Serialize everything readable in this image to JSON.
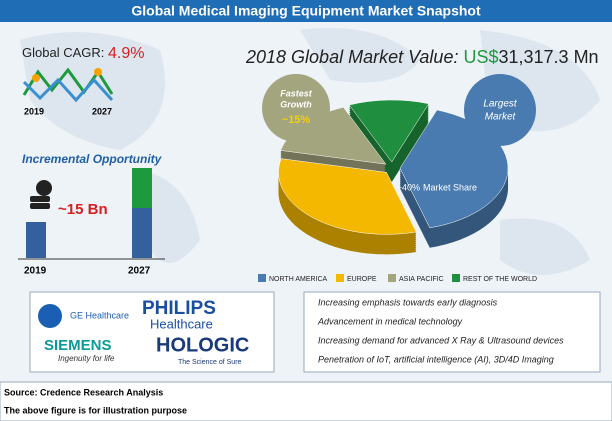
{
  "header": {
    "title": "Global Medical Imaging Equipment Market Snapshot"
  },
  "cagr": {
    "label": "Global CAGR:",
    "value": "4.9%",
    "years": [
      "2019",
      "2027"
    ]
  },
  "incremental": {
    "title": "Incremental Opportunity",
    "value": "~15 Bn",
    "years": [
      "2019",
      "2027"
    ]
  },
  "market_value": {
    "label": "2018 Global Market Value:",
    "currency": "US$",
    "value": "31,317.3 Mn"
  },
  "chart_data": {
    "type": "pie",
    "categories": [
      "NORTH AMERICA",
      "EUROPE",
      "ASIA PACIFIC",
      "REST OF THE WORLD"
    ],
    "values": [
      40,
      33,
      15,
      12
    ],
    "value_labels": [
      "~40%",
      null,
      "~15%",
      null
    ],
    "colors": [
      "#4a7bb0",
      "#f5b800",
      "#a3a57e",
      "#1f8f3f"
    ],
    "annotations": {
      "fastest": [
        "Fastest",
        "Growth"
      ],
      "largest": [
        "Largest",
        "Market"
      ],
      "share": "Market Share"
    }
  },
  "logos": {
    "ge": "GE Healthcare",
    "philips": "PHILIPS",
    "philips_sub": "Healthcare",
    "siemens": "SIEMENS",
    "siemens_sub": "Ingenuity for life",
    "hologic": "HOLOGIC",
    "hologic_sub": "The Science of Sure"
  },
  "drivers": [
    "Increasing emphasis towards early diagnosis",
    "Advancement in medical technology",
    "Increasing demand for advanced X Ray & Ultrasound devices",
    "Penetration of IoT, artificial intelligence (AI), 3D/4D Imaging"
  ],
  "footer": {
    "source": "Source: Credence Research Analysis",
    "note": "The above figure is for illustration purpose"
  }
}
